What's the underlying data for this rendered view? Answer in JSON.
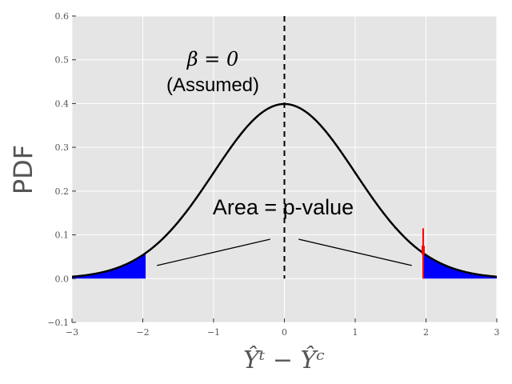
{
  "chart_data": {
    "type": "line",
    "title": "",
    "xlabel": "Ŷᵗ − Ŷᶜ",
    "ylabel": "PDF",
    "xlim": [
      -3,
      3
    ],
    "ylim": [
      -0.1,
      0.6
    ],
    "x_ticks": [
      -3,
      -2,
      -1,
      0,
      1,
      2,
      3
    ],
    "x_tick_labels": [
      "−3",
      "−2",
      "−1",
      "0",
      "1",
      "2",
      "3"
    ],
    "y_ticks": [
      -0.1,
      0.0,
      0.1,
      0.2,
      0.3,
      0.4,
      0.5,
      0.6
    ],
    "y_tick_labels": [
      "−0.1",
      "0.0",
      "0.1",
      "0.2",
      "0.3",
      "0.4",
      "0.5",
      "0.6"
    ],
    "grid": true,
    "series": [
      {
        "type": "normal-pdf",
        "mean": 0,
        "sd": 1,
        "color": "#000000"
      }
    ],
    "shaded_tails": {
      "lower_bound": -1.96,
      "upper_bound": 1.96,
      "color": "#0000ff"
    },
    "vertical_line": {
      "x": 0,
      "style": "dashed",
      "color": "#000000"
    },
    "observed_marker": {
      "x": 1.96,
      "y_top": 0.115,
      "color": "#ff0000"
    },
    "annotations": {
      "beta": "β = 0",
      "assumed": "(Assumed)",
      "area": "Area = p-value"
    },
    "pointer_lines": [
      {
        "from": [
          -0.2,
          0.09
        ],
        "to": [
          -1.8,
          0.03
        ]
      },
      {
        "from": [
          0.2,
          0.09
        ],
        "to": [
          1.8,
          0.03
        ]
      }
    ]
  },
  "colors": {
    "plot_background": "#e5e5e5",
    "grid": "#ffffff",
    "curve": "#000000",
    "tail_fill": "#0000ff",
    "marker": "#ff0000"
  }
}
